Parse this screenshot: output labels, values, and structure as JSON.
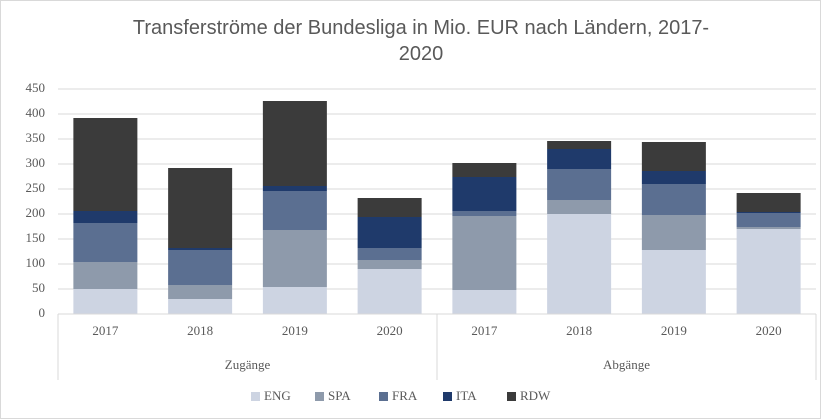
{
  "chart_data": {
    "type": "stacked_bar",
    "title": "Transferströme der Bundesliga in Mio. EUR nach Ländern, 2017-2020",
    "categories": [
      "2017",
      "2018",
      "2019",
      "2020",
      "2017",
      "2018",
      "2019",
      "2020"
    ],
    "groups": [
      "Zugänge",
      "Abgänge"
    ],
    "series": [
      {
        "name": "ENG",
        "color": "#cdd4e2",
        "values": [
          50,
          30,
          54,
          90,
          48,
          200,
          128,
          170
        ]
      },
      {
        "name": "SPA",
        "color": "#8e9aab",
        "values": [
          54,
          28,
          114,
          18,
          148,
          28,
          70,
          4
        ]
      },
      {
        "name": "FRA",
        "color": "#5b6f91",
        "values": [
          78,
          70,
          78,
          24,
          10,
          62,
          62,
          28
        ]
      },
      {
        "name": "ITA",
        "color": "#1f3a6b",
        "values": [
          24,
          4,
          10,
          62,
          68,
          40,
          26,
          2
        ]
      },
      {
        "name": "RDW",
        "color": "#3b3b3b",
        "values": [
          186,
          160,
          170,
          38,
          28,
          16,
          58,
          38
        ]
      }
    ],
    "ylim": [
      0,
      450
    ],
    "yticks": [
      0,
      50,
      100,
      150,
      200,
      250,
      300,
      350,
      400,
      450
    ],
    "grid": true,
    "legend": "bottom"
  }
}
